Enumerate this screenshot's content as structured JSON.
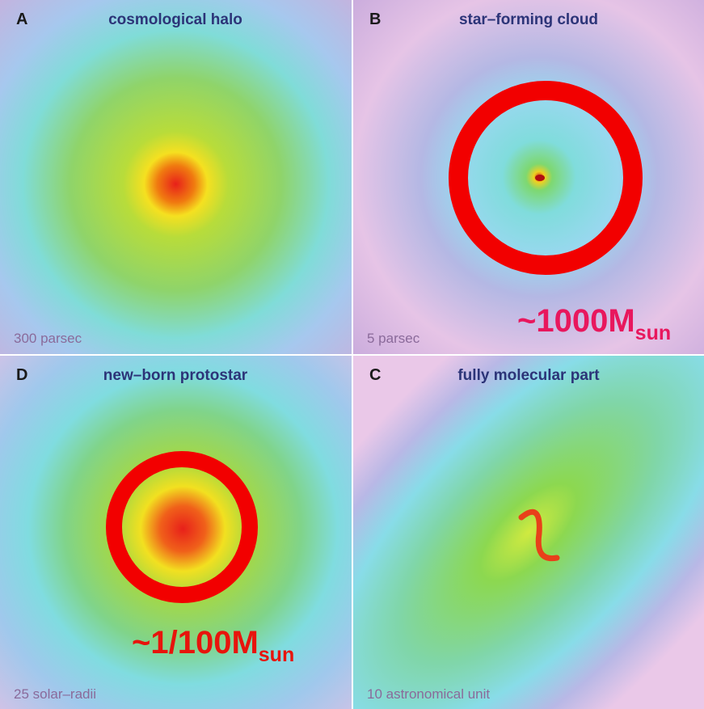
{
  "panels": [
    {
      "letter": "A",
      "title": "cosmological halo",
      "scale": "300 parsec"
    },
    {
      "letter": "B",
      "title": "star–forming cloud",
      "scale": "5 parsec"
    },
    {
      "letter": "D",
      "title": "new–born protostar",
      "scale": "25 solar–radii"
    },
    {
      "letter": "C",
      "title": "fully molecular part",
      "scale": "10 astronomical unit"
    }
  ],
  "annotations": [
    {
      "text": "~1000M",
      "subscript": "sun"
    },
    {
      "text": "~1/100M",
      "subscript": "sun"
    }
  ]
}
